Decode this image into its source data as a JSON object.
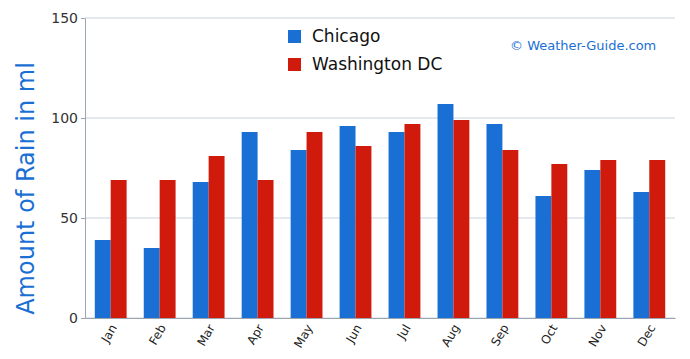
{
  "chart_data": {
    "type": "bar",
    "y_label": "Amount of Rain in ml",
    "annotations": [
      "© Weather-Guide.com"
    ],
    "categories": [
      "Jan",
      "Feb",
      "Mar",
      "Apr",
      "May",
      "Jun",
      "Jul",
      "Aug",
      "Sep",
      "Oct",
      "Nov",
      "Dec"
    ],
    "series": [
      {
        "name": "Chicago",
        "color": "#1a6fd4",
        "values": [
          39,
          35,
          68,
          93,
          84,
          96,
          93,
          107,
          97,
          61,
          74,
          63
        ]
      },
      {
        "name": "Washington DC",
        "color": "#d01a0c",
        "values": [
          69,
          69,
          81,
          69,
          93,
          86,
          97,
          99,
          84,
          77,
          79,
          79
        ]
      }
    ],
    "ylim": [
      0,
      150
    ],
    "yticks": [
      0,
      50,
      100,
      150
    ],
    "grid": true,
    "legend": "top"
  }
}
